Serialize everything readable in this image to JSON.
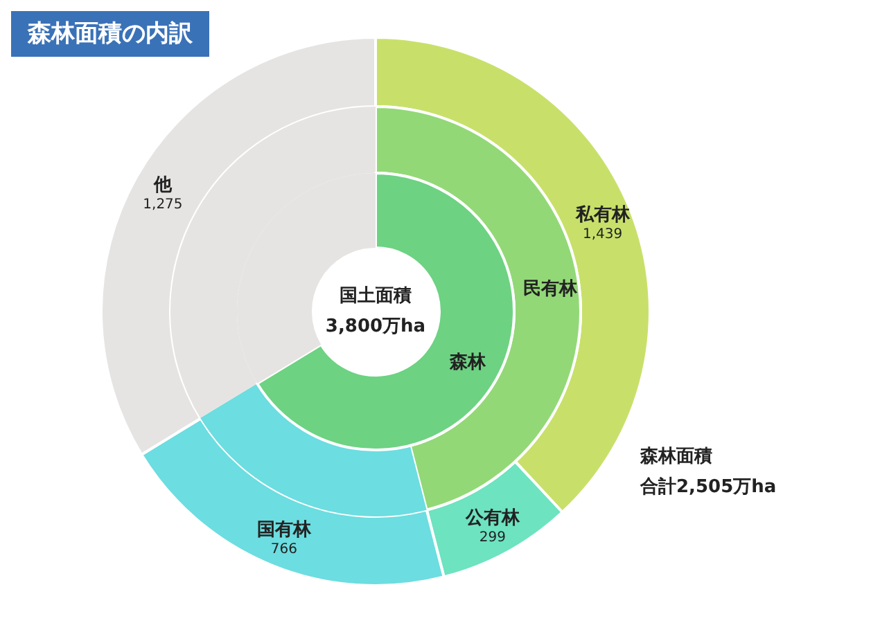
{
  "chart_data": [
    {
      "type": "donut",
      "title": "森林面積の内訳",
      "annotations": [
        "森林面積",
        "合計2,505万ha"
      ],
      "categories": [
        "私有林",
        "公有林",
        "国有林",
        "他"
      ],
      "values": [
        1439,
        299,
        766,
        1275
      ],
      "colors": [
        "#c8e06a",
        "#6de3c0",
        "#6cdde0",
        "#e6e4e2"
      ],
      "value_labels": [
        "1,439",
        "299",
        "766",
        "1,275"
      ]
    },
    {
      "type": "donut",
      "categories": [
        "民有林",
        null,
        null
      ],
      "values": [
        46.0,
        20.3,
        33.7
      ],
      "colors": [
        "#93d877",
        "#6cdde0",
        "#e6e4e2"
      ]
    },
    {
      "type": "donut",
      "annotations": [
        "国土面積",
        "3,800万ha"
      ],
      "categories": [
        "森林",
        null
      ],
      "values": [
        66.3,
        33.7
      ],
      "colors": [
        "#6dd282",
        "#e6e4e2"
      ]
    }
  ]
}
